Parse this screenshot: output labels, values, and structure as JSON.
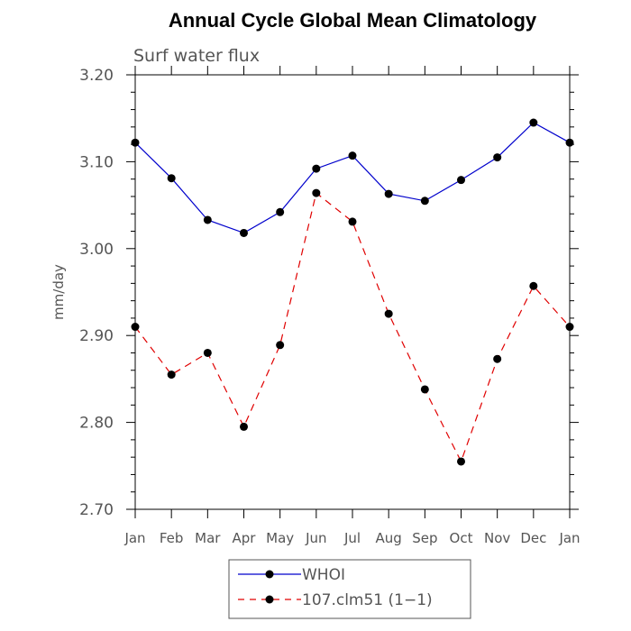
{
  "chart_data": {
    "type": "line",
    "title": "Annual Cycle Global Mean Climatology",
    "subtitle": "Surf water flux",
    "ylabel": "mm/day",
    "xlabel": "",
    "categories": [
      "Jan",
      "Feb",
      "Mar",
      "Apr",
      "May",
      "Jun",
      "Jul",
      "Aug",
      "Sep",
      "Oct",
      "Nov",
      "Dec",
      "Jan"
    ],
    "ylim": [
      2.7,
      3.2
    ],
    "yticks": [
      2.7,
      2.8,
      2.9,
      3.0,
      3.1,
      3.2
    ],
    "ytick_labels": [
      "2.70",
      "2.80",
      "2.90",
      "3.00",
      "3.10",
      "3.20"
    ],
    "grid": false,
    "legend_position": "bottom-center",
    "series": [
      {
        "name": "WHOI",
        "color": "#0000cc",
        "dash": "solid",
        "values": [
          3.122,
          3.081,
          3.033,
          3.018,
          3.042,
          3.092,
          3.107,
          3.063,
          3.055,
          3.079,
          3.105,
          3.145,
          3.122
        ]
      },
      {
        "name": "107.clm51 (1−1)",
        "color": "#e00000",
        "dash": "dashed",
        "values": [
          2.91,
          2.855,
          2.88,
          2.795,
          2.889,
          3.064,
          3.031,
          2.925,
          2.838,
          2.755,
          2.873,
          2.957,
          2.91
        ]
      }
    ]
  }
}
